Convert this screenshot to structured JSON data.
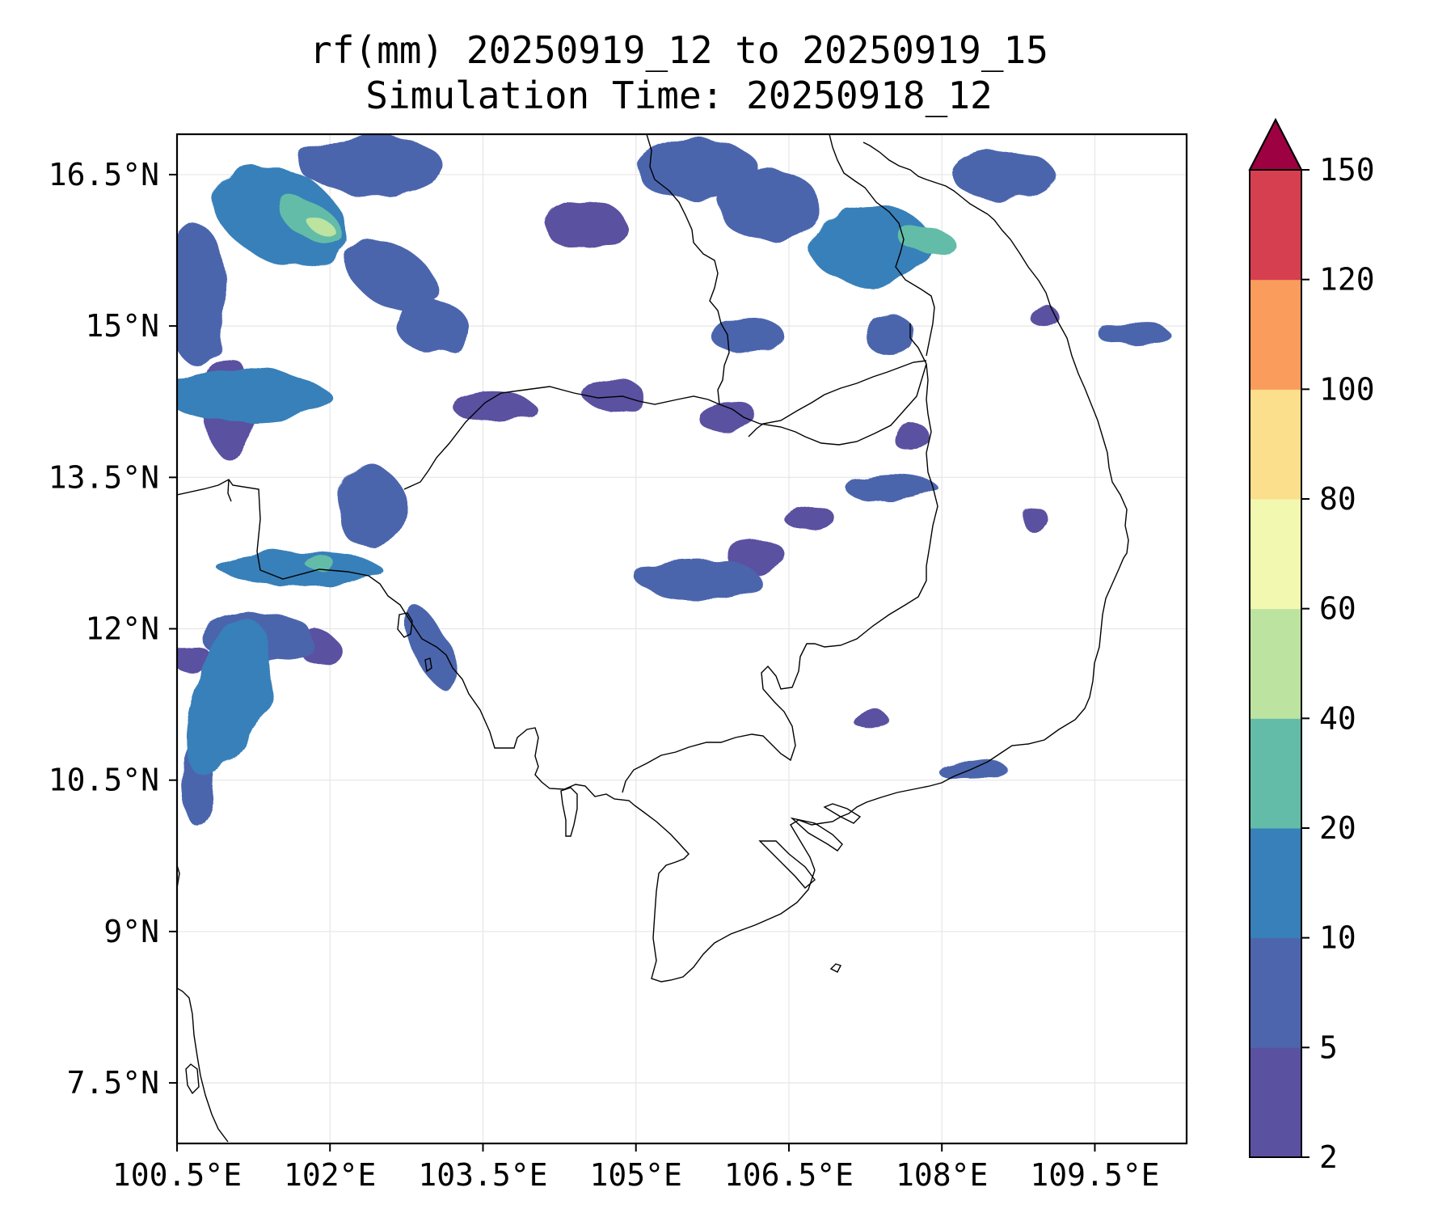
{
  "chart_data": {
    "type": "contourf_map",
    "title_line1": "rf(mm) 20250919_12 to 20250919_15",
    "title_line2": "Simulation Time: 20250918_12",
    "variable": "rf(mm)",
    "period_start": "20250919_12",
    "period_end": "20250919_15",
    "simulation_time": "20250918_12",
    "lon_range": [
      100.5,
      110.4
    ],
    "lat_range": [
      6.9,
      16.9
    ],
    "x_ticks": [
      {
        "value": 100.5,
        "label": "100.5°E"
      },
      {
        "value": 102.0,
        "label": "102°E"
      },
      {
        "value": 103.5,
        "label": "103.5°E"
      },
      {
        "value": 105.0,
        "label": "105°E"
      },
      {
        "value": 106.5,
        "label": "106.5°E"
      },
      {
        "value": 108.0,
        "label": "108°E"
      },
      {
        "value": 109.5,
        "label": "109.5°E"
      }
    ],
    "y_ticks": [
      {
        "value": 7.5,
        "label": "7.5°N"
      },
      {
        "value": 9.0,
        "label": "9°N"
      },
      {
        "value": 10.5,
        "label": "10.5°N"
      },
      {
        "value": 12.0,
        "label": "12°N"
      },
      {
        "value": 13.5,
        "label": "13.5°N"
      },
      {
        "value": 15.0,
        "label": "15°N"
      },
      {
        "value": 16.5,
        "label": "16.5°N"
      }
    ],
    "grid": true,
    "colorbar": {
      "levels": [
        2,
        5,
        10,
        20,
        40,
        60,
        80,
        100,
        120,
        150
      ],
      "tick_labels": [
        "2",
        "5",
        "10",
        "20",
        "40",
        "60",
        "80",
        "100",
        "120",
        "150"
      ],
      "colors": [
        "#5a51a1",
        "#4c65ad",
        "#3880b9",
        "#63bca8",
        "#bde3a1",
        "#f2f8af",
        "#fbdf8c",
        "#f99c5c",
        "#d53f4f"
      ],
      "extend_color": "#9e0142",
      "extend": "max"
    },
    "rain_areas": [
      {
        "lon": 101.5,
        "lat": 16.1,
        "w": 1.4,
        "h": 0.9,
        "rot": 25,
        "value": 15
      },
      {
        "lon": 101.8,
        "lat": 16.05,
        "w": 0.7,
        "h": 0.35,
        "rot": 30,
        "value": 30
      },
      {
        "lon": 101.9,
        "lat": 16.0,
        "w": 0.35,
        "h": 0.15,
        "rot": 30,
        "value": 45
      },
      {
        "lon": 100.7,
        "lat": 15.3,
        "w": 0.6,
        "h": 1.4,
        "rot": 0,
        "value": 7
      },
      {
        "lon": 101.2,
        "lat": 14.3,
        "w": 1.6,
        "h": 0.5,
        "rot": 0,
        "value": 12
      },
      {
        "lon": 101.0,
        "lat": 14.2,
        "w": 0.5,
        "h": 1.0,
        "rot": 0,
        "value": 4
      },
      {
        "lon": 102.6,
        "lat": 15.5,
        "w": 1.0,
        "h": 0.6,
        "rot": 30,
        "value": 9
      },
      {
        "lon": 103.0,
        "lat": 15.0,
        "w": 0.7,
        "h": 0.5,
        "rot": 0,
        "value": 5
      },
      {
        "lon": 102.4,
        "lat": 16.6,
        "w": 1.4,
        "h": 0.6,
        "rot": 0,
        "value": 6
      },
      {
        "lon": 104.5,
        "lat": 16.0,
        "w": 0.8,
        "h": 0.5,
        "rot": 0,
        "value": 4
      },
      {
        "lon": 105.6,
        "lat": 16.55,
        "w": 1.2,
        "h": 0.6,
        "rot": 0,
        "value": 5
      },
      {
        "lon": 106.3,
        "lat": 16.2,
        "w": 1.0,
        "h": 0.7,
        "rot": 0,
        "value": 6
      },
      {
        "lon": 107.3,
        "lat": 15.8,
        "w": 1.2,
        "h": 0.8,
        "rot": 0,
        "value": 12
      },
      {
        "lon": 107.85,
        "lat": 15.85,
        "w": 0.5,
        "h": 0.25,
        "rot": 0,
        "value": 30
      },
      {
        "lon": 106.1,
        "lat": 14.9,
        "w": 0.7,
        "h": 0.4,
        "rot": 0,
        "value": 5
      },
      {
        "lon": 107.5,
        "lat": 14.9,
        "w": 0.5,
        "h": 0.4,
        "rot": 0,
        "value": 6
      },
      {
        "lon": 108.6,
        "lat": 16.5,
        "w": 1.0,
        "h": 0.5,
        "rot": 0,
        "value": 5
      },
      {
        "lon": 109.9,
        "lat": 14.9,
        "w": 0.7,
        "h": 0.25,
        "rot": 0,
        "value": 8
      },
      {
        "lon": 109.0,
        "lat": 15.1,
        "w": 0.3,
        "h": 0.2,
        "rot": 0,
        "value": 4
      },
      {
        "lon": 104.8,
        "lat": 14.3,
        "w": 0.6,
        "h": 0.3,
        "rot": 0,
        "value": 4
      },
      {
        "lon": 103.6,
        "lat": 14.2,
        "w": 0.8,
        "h": 0.3,
        "rot": 0,
        "value": 3
      },
      {
        "lon": 105.9,
        "lat": 14.1,
        "w": 0.6,
        "h": 0.3,
        "rot": 0,
        "value": 4
      },
      {
        "lon": 107.5,
        "lat": 13.4,
        "w": 0.9,
        "h": 0.3,
        "rot": 0,
        "value": 5
      },
      {
        "lon": 106.7,
        "lat": 13.1,
        "w": 0.5,
        "h": 0.25,
        "rot": 0,
        "value": 4
      },
      {
        "lon": 105.6,
        "lat": 12.5,
        "w": 1.2,
        "h": 0.4,
        "rot": 0,
        "value": 7
      },
      {
        "lon": 106.2,
        "lat": 12.7,
        "w": 0.6,
        "h": 0.3,
        "rot": 0,
        "value": 4
      },
      {
        "lon": 101.7,
        "lat": 12.6,
        "w": 1.6,
        "h": 0.3,
        "rot": 0,
        "value": 10
      },
      {
        "lon": 101.9,
        "lat": 12.65,
        "w": 0.3,
        "h": 0.12,
        "rot": 0,
        "value": 30
      },
      {
        "lon": 102.4,
        "lat": 13.2,
        "w": 0.7,
        "h": 0.8,
        "rot": 0,
        "value": 5
      },
      {
        "lon": 103.0,
        "lat": 11.8,
        "w": 0.35,
        "h": 0.9,
        "rot": -25,
        "value": 6
      },
      {
        "lon": 101.0,
        "lat": 11.3,
        "w": 0.7,
        "h": 1.6,
        "rot": 20,
        "value": 10
      },
      {
        "lon": 101.3,
        "lat": 11.9,
        "w": 1.1,
        "h": 0.5,
        "rot": 0,
        "value": 8
      },
      {
        "lon": 100.7,
        "lat": 10.5,
        "w": 0.35,
        "h": 0.9,
        "rot": 0,
        "value": 5
      },
      {
        "lon": 100.65,
        "lat": 11.7,
        "w": 0.4,
        "h": 0.25,
        "rot": 0,
        "value": 4
      },
      {
        "lon": 101.9,
        "lat": 11.8,
        "w": 0.4,
        "h": 0.3,
        "rot": 0,
        "value": 4
      },
      {
        "lon": 107.3,
        "lat": 11.1,
        "w": 0.35,
        "h": 0.2,
        "rot": 0,
        "value": 4
      },
      {
        "lon": 108.3,
        "lat": 10.6,
        "w": 0.7,
        "h": 0.2,
        "rot": 0,
        "value": 5
      },
      {
        "lon": 108.9,
        "lat": 13.1,
        "w": 0.25,
        "h": 0.25,
        "rot": 0,
        "value": 3
      },
      {
        "lon": 107.7,
        "lat": 13.9,
        "w": 0.35,
        "h": 0.3,
        "rot": 0,
        "value": 4
      }
    ]
  }
}
